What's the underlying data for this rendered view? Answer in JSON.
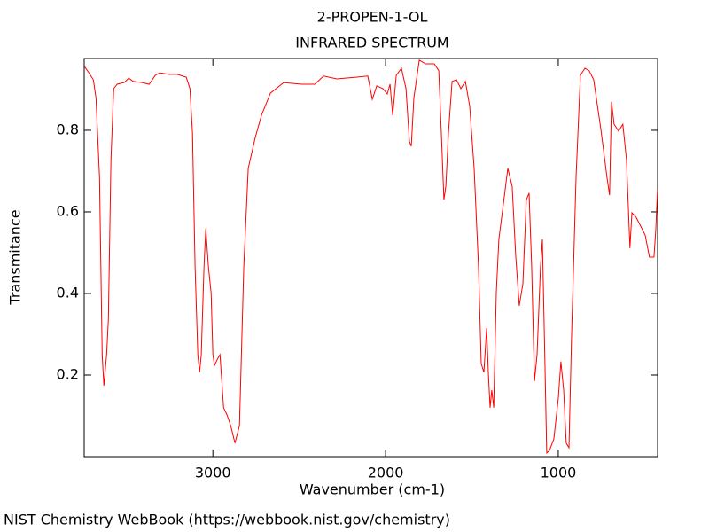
{
  "chart_data": {
    "type": "line",
    "title": "2-PROPEN-1-OL",
    "subtitle": "INFRARED SPECTRUM",
    "xlabel": "Wavenumber (cm-1)",
    "ylabel": "Transmitance",
    "source": "NIST Chemistry WebBook (https://webbook.nist.gov/chemistry)",
    "color": "#ff0000",
    "xlim": [
      3745,
      425
    ],
    "xticks": [
      3000,
      2000,
      1000
    ],
    "ylim": [
      0,
      0.976
    ],
    "yticks": [
      0.2,
      0.4,
      0.6,
      0.8
    ],
    "x": [
      3744,
      3718,
      3692,
      3677,
      3656,
      3641,
      3631,
      3615,
      3605,
      3590,
      3574,
      3554,
      3513,
      3487,
      3462,
      3410,
      3369,
      3333,
      3308,
      3256,
      3205,
      3154,
      3133,
      3118,
      3103,
      3087,
      3077,
      3067,
      3051,
      3041,
      3026,
      3010,
      3000,
      2990,
      2974,
      2959,
      2938,
      2918,
      2897,
      2872,
      2846,
      2821,
      2795,
      2754,
      2718,
      2667,
      2590,
      2487,
      2410,
      2359,
      2282,
      2179,
      2103,
      2077,
      2051,
      2015,
      1990,
      1974,
      1959,
      1938,
      1908,
      1882,
      1862,
      1851,
      1836,
      1805,
      1769,
      1718,
      1692,
      1677,
      1662,
      1651,
      1636,
      1615,
      1590,
      1564,
      1538,
      1513,
      1487,
      1462,
      1446,
      1431,
      1415,
      1405,
      1395,
      1385,
      1374,
      1359,
      1344,
      1318,
      1292,
      1267,
      1246,
      1226,
      1205,
      1185,
      1169,
      1154,
      1138,
      1123,
      1103,
      1092,
      1077,
      1067,
      1051,
      1026,
      1000,
      985,
      969,
      954,
      938,
      923,
      897,
      872,
      846,
      821,
      795,
      754,
      718,
      703,
      692,
      677,
      651,
      626,
      605,
      585,
      574,
      549,
      523,
      497,
      472,
      446,
      436,
      426
    ],
    "values": [
      0.957,
      0.941,
      0.924,
      0.88,
      0.685,
      0.25,
      0.174,
      0.25,
      0.337,
      0.728,
      0.902,
      0.913,
      0.917,
      0.928,
      0.92,
      0.917,
      0.913,
      0.935,
      0.941,
      0.937,
      0.937,
      0.93,
      0.902,
      0.793,
      0.467,
      0.25,
      0.207,
      0.25,
      0.467,
      0.559,
      0.467,
      0.402,
      0.25,
      0.224,
      0.239,
      0.25,
      0.12,
      0.102,
      0.076,
      0.033,
      0.076,
      0.467,
      0.707,
      0.783,
      0.837,
      0.891,
      0.917,
      0.913,
      0.913,
      0.933,
      0.926,
      0.93,
      0.933,
      0.876,
      0.909,
      0.902,
      0.889,
      0.913,
      0.837,
      0.935,
      0.952,
      0.902,
      0.772,
      0.761,
      0.88,
      0.972,
      0.963,
      0.963,
      0.946,
      0.793,
      0.63,
      0.663,
      0.793,
      0.92,
      0.924,
      0.902,
      0.92,
      0.859,
      0.707,
      0.467,
      0.228,
      0.207,
      0.315,
      0.207,
      0.12,
      0.163,
      0.12,
      0.402,
      0.533,
      0.62,
      0.707,
      0.663,
      0.489,
      0.37,
      0.424,
      0.63,
      0.646,
      0.467,
      0.185,
      0.25,
      0.467,
      0.533,
      0.228,
      0.009,
      0.015,
      0.043,
      0.141,
      0.233,
      0.163,
      0.033,
      0.022,
      0.293,
      0.685,
      0.935,
      0.952,
      0.946,
      0.924,
      0.804,
      0.685,
      0.641,
      0.87,
      0.815,
      0.798,
      0.815,
      0.728,
      0.511,
      0.598,
      0.587,
      0.565,
      0.543,
      0.489,
      0.489,
      0.554,
      0.652
    ]
  }
}
